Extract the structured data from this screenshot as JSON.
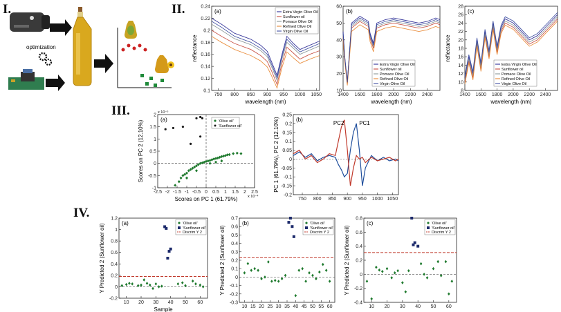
{
  "sections": {
    "s1": "I.",
    "s2": "II.",
    "s3": "III.",
    "s4": "IV."
  },
  "section1": {
    "optimization_label": "optimization"
  },
  "panel_labels": {
    "a": "(a)",
    "b": "(b)",
    "c": "(c)"
  },
  "spectra": {
    "legend": [
      "Extra Virgin Olive Oil",
      "Sunflower oil",
      "Pomace Olive Oil",
      "Refined Olive Oil",
      "Virgin Olive Oil"
    ],
    "colors": [
      "#1a1a8c",
      "#c0392b",
      "#7f8c8d",
      "#e67e22",
      "#2c3e99"
    ]
  },
  "chart_data": [
    {
      "id": "IIa",
      "type": "line",
      "panel": "(a)",
      "xlabel": "wavelength (nm)",
      "ylabel": "reflectance",
      "xlim": [
        730,
        1060
      ],
      "ylim": [
        0.1,
        0.24
      ],
      "xticks": [
        750,
        800,
        850,
        900,
        950,
        1000,
        1050
      ],
      "yticks": [
        0.1,
        0.12,
        0.14,
        0.16,
        0.18,
        0.2,
        0.22,
        0.24
      ],
      "x": [
        730,
        760,
        800,
        850,
        880,
        900,
        915,
        930,
        945,
        960,
        980,
        1000,
        1030,
        1060
      ],
      "series": [
        {
          "name": "Extra Virgin Olive Oil",
          "values": [
            0.22,
            0.21,
            0.195,
            0.185,
            0.175,
            0.165,
            0.145,
            0.125,
            0.16,
            0.19,
            0.178,
            0.168,
            0.175,
            0.182
          ]
        },
        {
          "name": "Sunflower oil",
          "values": [
            0.2,
            0.19,
            0.178,
            0.168,
            0.158,
            0.148,
            0.13,
            0.11,
            0.145,
            0.172,
            0.162,
            0.152,
            0.16,
            0.166
          ]
        },
        {
          "name": "Pomace Olive Oil",
          "values": [
            0.21,
            0.2,
            0.186,
            0.176,
            0.166,
            0.156,
            0.137,
            0.117,
            0.152,
            0.18,
            0.17,
            0.16,
            0.167,
            0.174
          ]
        },
        {
          "name": "Refined Olive Oil",
          "values": [
            0.19,
            0.18,
            0.168,
            0.158,
            0.149,
            0.139,
            0.122,
            0.104,
            0.138,
            0.164,
            0.154,
            0.145,
            0.152,
            0.158
          ]
        },
        {
          "name": "Virgin Olive Oil",
          "values": [
            0.215,
            0.205,
            0.19,
            0.18,
            0.17,
            0.16,
            0.141,
            0.121,
            0.156,
            0.185,
            0.174,
            0.164,
            0.171,
            0.178
          ]
        }
      ]
    },
    {
      "id": "IIb",
      "type": "line",
      "panel": "(b)",
      "xlabel": "wavelength (nm)",
      "ylabel": "",
      "xlim": [
        1400,
        2550
      ],
      "ylim": [
        10,
        60
      ],
      "xticks": [
        1400,
        1600,
        1800,
        2000,
        2200,
        2400
      ],
      "yticks": [
        10,
        20,
        30,
        40,
        50,
        60
      ],
      "x": [
        1400,
        1420,
        1450,
        1500,
        1600,
        1700,
        1720,
        1760,
        1800,
        1900,
        2000,
        2100,
        2200,
        2300,
        2400,
        2500,
        2550
      ],
      "series": [
        {
          "name": "Extra Virgin Olive Oil",
          "values": [
            45,
            30,
            15,
            50,
            54,
            51,
            44,
            38,
            50,
            52,
            53,
            52,
            51,
            50,
            51,
            53,
            52
          ]
        },
        {
          "name": "Sunflower oil",
          "values": [
            42,
            28,
            14,
            47,
            51,
            48,
            41,
            35,
            47,
            49,
            50,
            49,
            48,
            47,
            48,
            50,
            49
          ]
        },
        {
          "name": "Pomace Olive Oil",
          "values": [
            43,
            29,
            14.5,
            48,
            52,
            49,
            42,
            36,
            48,
            50,
            51,
            50,
            49,
            48,
            49,
            51,
            50
          ]
        },
        {
          "name": "Refined Olive Oil",
          "values": [
            40,
            27,
            13,
            45,
            49,
            46,
            39,
            33,
            45,
            47,
            48,
            47,
            46,
            45,
            46,
            48,
            47
          ]
        },
        {
          "name": "Virgin Olive Oil",
          "values": [
            44,
            29.5,
            14.8,
            49,
            53,
            50,
            43,
            37,
            49,
            51,
            52,
            51,
            50,
            49,
            50,
            52,
            51
          ]
        }
      ]
    },
    {
      "id": "IIc",
      "type": "line",
      "panel": "(c)",
      "xlabel": "wavelength (nm)",
      "ylabel": "reflectance",
      "xlim": [
        1400,
        2550
      ],
      "ylim": [
        8,
        28
      ],
      "xticks": [
        1400,
        1600,
        1800,
        2000,
        2200,
        2400
      ],
      "yticks": [
        8,
        10,
        12,
        14,
        16,
        18,
        20,
        22,
        24,
        26,
        28
      ],
      "x": [
        1400,
        1450,
        1500,
        1550,
        1600,
        1650,
        1700,
        1750,
        1800,
        1850,
        1900,
        2000,
        2100,
        2200,
        2300,
        2400,
        2500,
        2550
      ],
      "series": [
        {
          "name": "Extra Virgin Olive Oil",
          "values": [
            11,
            16,
            12,
            20,
            14,
            22,
            17,
            24,
            18,
            23,
            25,
            24,
            22,
            20,
            21,
            23,
            25,
            26
          ]
        },
        {
          "name": "Sunflower oil",
          "values": [
            10,
            15,
            11,
            19,
            13,
            21,
            16,
            23,
            17,
            22,
            24,
            23,
            21,
            19,
            20,
            22,
            24,
            25
          ]
        },
        {
          "name": "Pomace Olive Oil",
          "values": [
            10.5,
            15.5,
            11.5,
            19.5,
            13.5,
            21.5,
            16.5,
            23.5,
            17.5,
            22.5,
            24.5,
            23.5,
            21.5,
            19.5,
            20.5,
            22.5,
            24.5,
            25.5
          ]
        },
        {
          "name": "Refined Olive Oil",
          "values": [
            9.5,
            14.5,
            10.5,
            18.5,
            12.5,
            20.5,
            15.5,
            22.5,
            16.5,
            21.5,
            23.5,
            22.5,
            20.5,
            18.5,
            19.5,
            21.5,
            23.5,
            24.5
          ]
        },
        {
          "name": "Virgin Olive Oil",
          "values": [
            11.5,
            16.5,
            12.5,
            20.5,
            14.5,
            22.5,
            17.5,
            24.5,
            18.5,
            23.5,
            25.5,
            24.5,
            22.5,
            20.5,
            21.5,
            23.5,
            25.5,
            26.5
          ]
        }
      ]
    },
    {
      "id": "IIIa",
      "type": "scatter",
      "panel": "(a)",
      "xlabel": "Scores on PC 1 (61.79%)",
      "ylabel": "Scores on PC 2 (12.10%)",
      "x_exp_label": "x 10⁻⁴",
      "y_exp_label": "x 10⁻⁵",
      "xlim": [
        -2.5,
        2.5
      ],
      "ylim": [
        -1,
        2
      ],
      "xticks": [
        -2.5,
        -2,
        -1.5,
        -1,
        -0.5,
        0,
        0.5,
        1,
        1.5,
        2,
        2.5
      ],
      "yticks": [
        -1,
        -0.5,
        0,
        0.5,
        1,
        1.5,
        2
      ],
      "legend": [
        "Olive oil",
        "Sunflower oil"
      ],
      "olive": [
        [
          -1.6,
          -0.9
        ],
        [
          -1.4,
          -0.75
        ],
        [
          -1.3,
          -0.6
        ],
        [
          -1.2,
          -0.5
        ],
        [
          -1.1,
          -0.45
        ],
        [
          -1.0,
          -0.4
        ],
        [
          -0.9,
          -0.3
        ],
        [
          -0.8,
          -0.25
        ],
        [
          -0.7,
          -0.2
        ],
        [
          -0.6,
          -0.15
        ],
        [
          -0.5,
          -0.1
        ],
        [
          -0.4,
          -0.05
        ],
        [
          -0.3,
          0.0
        ],
        [
          -0.2,
          0.02
        ],
        [
          -0.1,
          0.05
        ],
        [
          0.0,
          0.08
        ],
        [
          0.1,
          0.1
        ],
        [
          0.2,
          0.12
        ],
        [
          0.3,
          0.15
        ],
        [
          0.4,
          0.18
        ],
        [
          0.5,
          0.2
        ],
        [
          0.6,
          0.22
        ],
        [
          0.7,
          0.25
        ],
        [
          0.8,
          0.28
        ],
        [
          0.9,
          0.3
        ],
        [
          1.0,
          0.32
        ],
        [
          1.1,
          0.35
        ],
        [
          1.2,
          0.36
        ],
        [
          1.4,
          0.4
        ],
        [
          1.6,
          0.42
        ],
        [
          1.8,
          0.4
        ],
        [
          -1.0,
          -0.6
        ],
        [
          -0.5,
          -0.3
        ],
        [
          0.2,
          0.0
        ],
        [
          0.5,
          0.05
        ],
        [
          0.8,
          0.1
        ]
      ],
      "sunflower": [
        [
          -2.1,
          1.4
        ],
        [
          -1.7,
          1.45
        ],
        [
          -1.2,
          1.5
        ],
        [
          -0.5,
          1.85
        ],
        [
          -0.3,
          1.9
        ],
        [
          -0.2,
          1.85
        ],
        [
          -0.3,
          1.1
        ],
        [
          -0.8,
          0.8
        ]
      ]
    },
    {
      "id": "IIIb",
      "type": "line",
      "panel": "(b)",
      "xlabel": "",
      "ylabel": "PC 1 (61.79%), PC 2 (12.10%)",
      "xlim": [
        720,
        1070
      ],
      "ylim": [
        -0.2,
        0.25
      ],
      "xticks": [
        750,
        800,
        850,
        900,
        950,
        1000,
        1050
      ],
      "yticks": [
        -0.2,
        -0.15,
        -0.1,
        -0.05,
        0,
        0.05,
        0.1,
        0.15,
        0.2,
        0.25
      ],
      "annotations": [
        "PC2",
        "PC1"
      ],
      "x": [
        720,
        740,
        760,
        780,
        800,
        820,
        840,
        860,
        870,
        880,
        890,
        900,
        910,
        920,
        930,
        940,
        950,
        960,
        980,
        1000,
        1020,
        1040,
        1060,
        1070
      ],
      "series": [
        {
          "name": "PC1",
          "values": [
            0.02,
            0.04,
            0.01,
            0.03,
            -0.01,
            0.01,
            0.02,
            0.01,
            -0.03,
            -0.06,
            -0.1,
            -0.08,
            0.05,
            0.15,
            0.2,
            0.05,
            -0.15,
            -0.05,
            0.02,
            -0.01,
            0.01,
            -0.01,
            0.0,
            -0.01
          ]
        },
        {
          "name": "PC2",
          "values": [
            0.03,
            0.05,
            0.0,
            0.02,
            -0.02,
            0.0,
            0.03,
            0.02,
            0.1,
            0.18,
            0.22,
            0.05,
            -0.15,
            -0.05,
            0.02,
            0.0,
            0.01,
            -0.02,
            0.01,
            -0.01,
            0.0,
            0.01,
            -0.01,
            0.0
          ]
        }
      ]
    },
    {
      "id": "IVa",
      "type": "scatter",
      "panel": "(a)",
      "xlabel": "Sample",
      "ylabel": "Y Predicted 2 (Sunflower oil)",
      "xlim": [
        5,
        65
      ],
      "ylim": [
        -0.2,
        1.2
      ],
      "xticks": [
        10,
        20,
        30,
        40,
        50,
        60
      ],
      "yticks": [
        -0.2,
        0,
        0.2,
        0.4,
        0.6,
        0.8,
        1,
        1.2
      ],
      "threshold": 0.18,
      "legend": [
        "Olive oil",
        "Sunflower oil",
        "Discrim Y 2"
      ],
      "olive": [
        [
          7,
          0.02
        ],
        [
          10,
          0.04
        ],
        [
          12,
          0.06
        ],
        [
          14,
          0.05
        ],
        [
          18,
          0.02
        ],
        [
          20,
          0.03
        ],
        [
          22,
          0.12
        ],
        [
          24,
          0.06
        ],
        [
          26,
          0.03
        ],
        [
          28,
          -0.03
        ],
        [
          30,
          0.05
        ],
        [
          32,
          0.0
        ],
        [
          34,
          0.01
        ],
        [
          45,
          0.05
        ],
        [
          48,
          0.07
        ],
        [
          50,
          0.02
        ],
        [
          55,
          0.1
        ],
        [
          57,
          0.05
        ],
        [
          60,
          0.03
        ],
        [
          62,
          0.0
        ]
      ],
      "sunflower": [
        [
          36,
          1.05
        ],
        [
          37,
          1.02
        ],
        [
          38,
          0.5
        ],
        [
          39,
          0.62
        ],
        [
          40,
          0.66
        ]
      ]
    },
    {
      "id": "IVb",
      "type": "scatter",
      "panel": "(b)",
      "xlabel": "",
      "ylabel": "Y Predicted 2 (Sunflower oil)",
      "xlim": [
        7,
        63
      ],
      "ylim": [
        -0.3,
        0.7
      ],
      "xticks": [
        10,
        15,
        20,
        25,
        30,
        35,
        40,
        45,
        50,
        55,
        60
      ],
      "yticks": [
        -0.3,
        -0.2,
        -0.1,
        0,
        0.1,
        0.2,
        0.3,
        0.4,
        0.5,
        0.6,
        0.7
      ],
      "threshold": 0.23,
      "legend": [
        "Olive oil",
        "Sunflower oil",
        "Discrim Y 2"
      ],
      "olive": [
        [
          10,
          0.05
        ],
        [
          12,
          0.16
        ],
        [
          14,
          0.08
        ],
        [
          16,
          0.1
        ],
        [
          18,
          0.08
        ],
        [
          20,
          -0.02
        ],
        [
          22,
          0.0
        ],
        [
          24,
          0.18
        ],
        [
          26,
          -0.05
        ],
        [
          28,
          -0.04
        ],
        [
          30,
          -0.05
        ],
        [
          32,
          -0.02
        ],
        [
          34,
          0.02
        ],
        [
          40,
          -0.22
        ],
        [
          42,
          0.08
        ],
        [
          44,
          0.1
        ],
        [
          46,
          -0.05
        ],
        [
          48,
          0.05
        ],
        [
          50,
          0.02
        ],
        [
          52,
          -0.02
        ],
        [
          54,
          0.06
        ],
        [
          56,
          0.15
        ],
        [
          58,
          0.08
        ],
        [
          60,
          -0.05
        ]
      ],
      "sunflower": [
        [
          36,
          0.65
        ],
        [
          37,
          0.7
        ],
        [
          38,
          0.6
        ],
        [
          39,
          0.48
        ]
      ]
    },
    {
      "id": "IVc",
      "type": "scatter",
      "panel": "(c)",
      "xlabel": "",
      "ylabel": "Y Predicted 2 (Sunflower oil)",
      "xlim": [
        5,
        65
      ],
      "ylim": [
        -0.4,
        0.8
      ],
      "xticks": [
        10,
        20,
        30,
        40,
        50,
        60
      ],
      "yticks": [
        -0.4,
        -0.2,
        0,
        0.2,
        0.4,
        0.6,
        0.8
      ],
      "threshold": 0.31,
      "legend": [
        "Olive oil",
        "Sunflower oil",
        "Discrim Y 2"
      ],
      "olive": [
        [
          7,
          -0.1
        ],
        [
          10,
          -0.35
        ],
        [
          13,
          0.1
        ],
        [
          15,
          0.06
        ],
        [
          17,
          0.04
        ],
        [
          20,
          0.08
        ],
        [
          23,
          -0.05
        ],
        [
          25,
          0.02
        ],
        [
          27,
          0.05
        ],
        [
          30,
          -0.12
        ],
        [
          32,
          -0.25
        ],
        [
          34,
          0.05
        ],
        [
          42,
          0.15
        ],
        [
          44,
          0.0
        ],
        [
          46,
          -0.05
        ],
        [
          50,
          0.08
        ],
        [
          53,
          0.18
        ],
        [
          55,
          -0.02
        ],
        [
          58,
          0.18
        ],
        [
          60,
          -0.28
        ],
        [
          62,
          -0.1
        ]
      ],
      "sunflower": [
        [
          36,
          0.8
        ],
        [
          37,
          0.42
        ],
        [
          38,
          0.45
        ],
        [
          40,
          0.4
        ]
      ]
    }
  ]
}
